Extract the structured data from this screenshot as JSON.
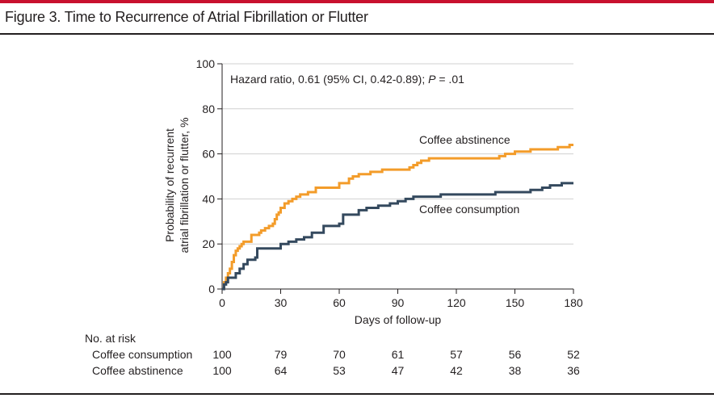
{
  "figure": {
    "title": "Figure 3. Time to Recurrence of Atrial Fibrillation or Flutter"
  },
  "chart_data": {
    "type": "line",
    "step": true,
    "xlabel": "Days of follow-up",
    "ylabel_line1": "Probability of recurrent",
    "ylabel_line2": "atrial fibrillation or flutter, %",
    "xlim": [
      0,
      180
    ],
    "ylim": [
      0,
      100
    ],
    "xticks": [
      0,
      30,
      60,
      90,
      120,
      150,
      180
    ],
    "yticks": [
      0,
      20,
      40,
      60,
      80,
      100
    ],
    "grid": "horizontal",
    "annotation_prefix": "Hazard ratio, 0.61 (95% CI, 0.42-0.89); ",
    "annotation_p": "P",
    "annotation_suffix": " = .01",
    "series": [
      {
        "name": "Coffee abstinence",
        "color": "#f39c2a",
        "x": [
          0,
          1,
          2,
          3,
          4,
          5,
          6,
          7,
          8,
          9,
          10,
          11,
          13,
          15,
          17,
          19,
          20,
          22,
          24,
          26,
          27,
          28,
          29,
          30,
          32,
          34,
          36,
          38,
          40,
          44,
          48,
          52,
          56,
          60,
          62,
          65,
          67,
          70,
          76,
          82,
          90,
          96,
          98,
          100,
          102,
          106,
          110,
          120,
          130,
          138,
          142,
          145,
          150,
          158,
          162,
          172,
          178,
          180
        ],
        "y": [
          0,
          3,
          5,
          7,
          9,
          12,
          15,
          17,
          18,
          19,
          20,
          21,
          21,
          24,
          24,
          25,
          26,
          27,
          28,
          29,
          31,
          33,
          34,
          36,
          38,
          39,
          40,
          41,
          42,
          43,
          45,
          45,
          45,
          47,
          47,
          49,
          50,
          51,
          52,
          53,
          53,
          54,
          55,
          56,
          57,
          58,
          58,
          58,
          58,
          58,
          59,
          60,
          61,
          62,
          62,
          63,
          64,
          64
        ]
      },
      {
        "name": "Coffee consumption",
        "color": "#34495e",
        "x": [
          0,
          1,
          2,
          3,
          5,
          7,
          9,
          11,
          13,
          15,
          17,
          18,
          20,
          26,
          30,
          34,
          38,
          42,
          46,
          52,
          60,
          62,
          66,
          70,
          74,
          80,
          86,
          90,
          94,
          98,
          100,
          112,
          126,
          140,
          150,
          152,
          158,
          164,
          168,
          174,
          180
        ],
        "y": [
          0,
          2,
          3,
          5,
          5,
          7,
          9,
          11,
          13,
          13,
          14,
          18,
          18,
          18,
          20,
          21,
          22,
          23,
          25,
          28,
          29,
          33,
          33,
          35,
          36,
          37,
          38,
          39,
          40,
          41,
          41,
          42,
          42,
          43,
          43,
          43,
          44,
          45,
          46,
          47,
          47
        ]
      }
    ],
    "number_at_risk": {
      "title": "No. at risk",
      "days": [
        0,
        30,
        60,
        90,
        120,
        150,
        180
      ],
      "rows": [
        {
          "label": "Coffee consumption",
          "values": [
            "100",
            "79",
            "70",
            "61",
            "57",
            "56",
            "52"
          ]
        },
        {
          "label": "Coffee abstinence",
          "values": [
            "100",
            "64",
            "53",
            "47",
            "42",
            "38",
            "36"
          ]
        }
      ]
    }
  }
}
